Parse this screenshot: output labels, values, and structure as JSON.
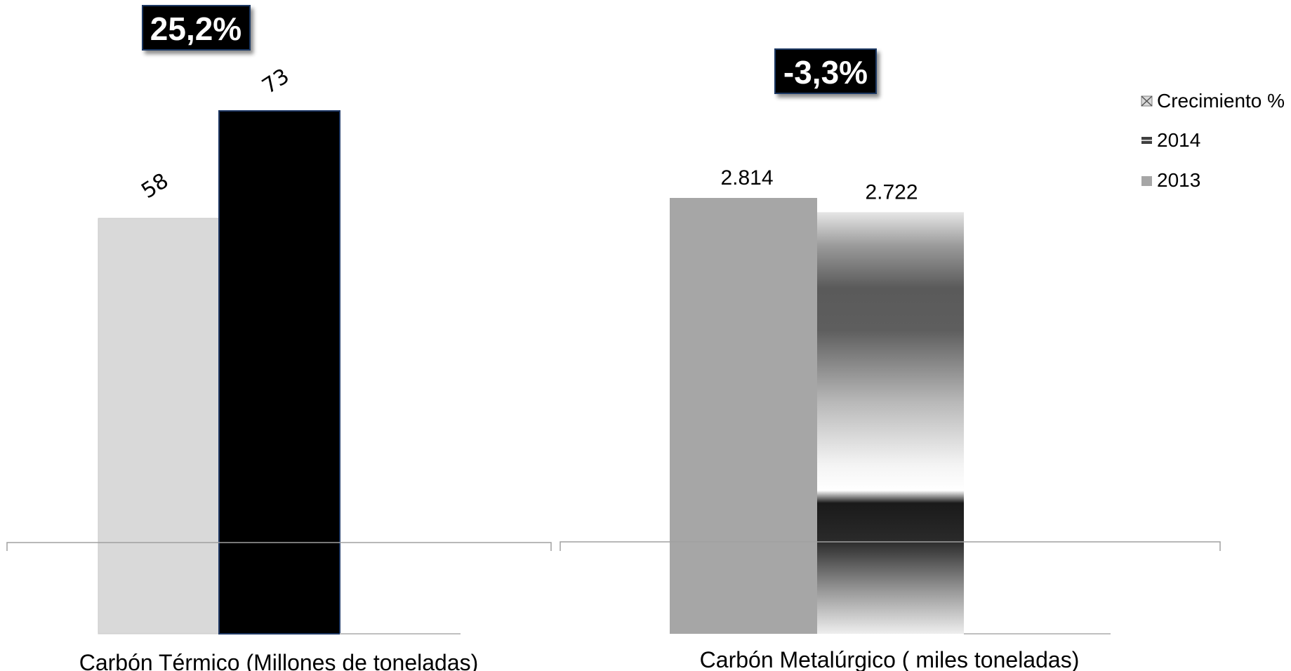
{
  "chart_data": [
    {
      "type": "bar",
      "category": "Carbón Térmico  (Millones de toneladas)",
      "series": [
        {
          "name": "2013",
          "value": 58,
          "label": "58",
          "color": "#d9d9d9"
        },
        {
          "name": "2014",
          "value": 73,
          "label": "73",
          "color": "#000000"
        },
        {
          "name": "Crecimiento %",
          "value": 0,
          "label": "",
          "color": "#bfbfbf"
        }
      ],
      "growth_label": "25,2%",
      "ylim": [
        0,
        73
      ]
    },
    {
      "type": "bar",
      "category": "Carbón Metalúrgico ( miles toneladas)",
      "series": [
        {
          "name": "2013",
          "value": 2814,
          "label": "2.814",
          "color": "#a6a6a6"
        },
        {
          "name": "2014",
          "value": 2722,
          "label": "2.722",
          "color": "gradient"
        },
        {
          "name": "Crecimiento %",
          "value": 0,
          "label": "",
          "color": "#bfbfbf"
        }
      ],
      "growth_label": "-3,3%",
      "ylim": [
        0,
        3400
      ]
    }
  ],
  "legend": [
    {
      "label": "Crecimiento %",
      "icon": "envelope-swatch-icon"
    },
    {
      "label": "2014",
      "icon": "striped-swatch-icon"
    },
    {
      "label": "2013",
      "icon": "gray-swatch-icon"
    }
  ],
  "colors": {
    "badge_bg": "#000000",
    "badge_border": "#1f3864",
    "bar_outline": "#1f3864"
  }
}
